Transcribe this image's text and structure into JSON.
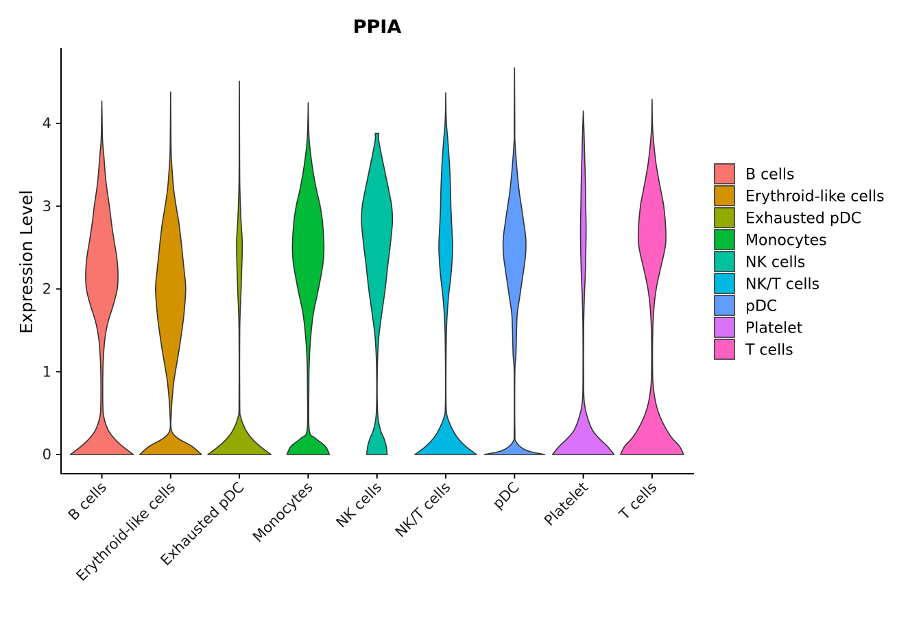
{
  "chart_data": {
    "type": "violin",
    "title": "PPIA",
    "xlabel": "",
    "ylabel": "Expression Level",
    "ylim": [
      -0.2,
      4.9
    ],
    "yticks": [
      0,
      1,
      2,
      3,
      4
    ],
    "ytick_labels": [
      "0",
      "1",
      "2",
      "3",
      "4"
    ],
    "legend_position": "right",
    "categories": [
      "B cells",
      "Erythroid-like cells",
      "Exhausted pDC",
      "Monocytes",
      "NK cells",
      "NK/T cells",
      "pDC",
      "Platelet",
      "T cells"
    ],
    "colors": [
      "#F8766D",
      "#D39200",
      "#93AA00",
      "#00BA38",
      "#00C19F",
      "#00B9E3",
      "#619CFF",
      "#DB72FB",
      "#FF61C3"
    ],
    "series": [
      {
        "name": "B cells",
        "min": 0,
        "max": 4.27,
        "profile": [
          [
            0,
            0.92
          ],
          [
            0.1,
            0.6
          ],
          [
            0.2,
            0.35
          ],
          [
            0.3,
            0.18
          ],
          [
            0.45,
            0.06
          ],
          [
            0.6,
            0.03
          ],
          [
            1.0,
            0.03
          ],
          [
            1.2,
            0.05
          ],
          [
            1.4,
            0.09
          ],
          [
            1.6,
            0.18
          ],
          [
            1.8,
            0.33
          ],
          [
            2.0,
            0.45
          ],
          [
            2.2,
            0.47
          ],
          [
            2.4,
            0.43
          ],
          [
            2.6,
            0.35
          ],
          [
            2.8,
            0.28
          ],
          [
            3.0,
            0.22
          ],
          [
            3.3,
            0.12
          ],
          [
            3.6,
            0.06
          ],
          [
            3.8,
            0.02
          ],
          [
            4.0,
            0.01
          ],
          [
            4.27,
            0.0
          ]
        ]
      },
      {
        "name": "Erythroid-like cells",
        "min": 0,
        "max": 4.38,
        "profile": [
          [
            0,
            0.9
          ],
          [
            0.1,
            0.62
          ],
          [
            0.2,
            0.2
          ],
          [
            0.3,
            0.02
          ],
          [
            0.5,
            0.02
          ],
          [
            0.7,
            0.05
          ],
          [
            0.9,
            0.1
          ],
          [
            1.1,
            0.18
          ],
          [
            1.3,
            0.26
          ],
          [
            1.5,
            0.33
          ],
          [
            1.7,
            0.39
          ],
          [
            2.0,
            0.44
          ],
          [
            2.2,
            0.4
          ],
          [
            2.4,
            0.35
          ],
          [
            2.6,
            0.3
          ],
          [
            2.8,
            0.24
          ],
          [
            3.0,
            0.16
          ],
          [
            3.2,
            0.09
          ],
          [
            3.4,
            0.05
          ],
          [
            3.6,
            0.02
          ],
          [
            3.8,
            0.01
          ],
          [
            4.1,
            0.005
          ],
          [
            4.38,
            0.0
          ]
        ]
      },
      {
        "name": "Exhausted pDC",
        "min": 0,
        "max": 4.51,
        "profile": [
          [
            0,
            0.92
          ],
          [
            0.1,
            0.6
          ],
          [
            0.2,
            0.35
          ],
          [
            0.3,
            0.18
          ],
          [
            0.45,
            0.04
          ],
          [
            0.6,
            0.01
          ],
          [
            1.5,
            0.01
          ],
          [
            2.0,
            0.05
          ],
          [
            2.4,
            0.08
          ],
          [
            2.6,
            0.08
          ],
          [
            2.8,
            0.05
          ],
          [
            3.0,
            0.03
          ],
          [
            3.3,
            0.01
          ],
          [
            3.8,
            0.005
          ],
          [
            4.2,
            0.003
          ],
          [
            4.51,
            0.0
          ]
        ]
      },
      {
        "name": "Monocytes",
        "min": 0,
        "max": 4.25,
        "profile": [
          [
            0,
            0.62
          ],
          [
            0.1,
            0.5
          ],
          [
            0.2,
            0.2
          ],
          [
            0.3,
            0.03
          ],
          [
            0.8,
            0.02
          ],
          [
            1.1,
            0.03
          ],
          [
            1.4,
            0.07
          ],
          [
            1.7,
            0.15
          ],
          [
            2.0,
            0.3
          ],
          [
            2.3,
            0.43
          ],
          [
            2.5,
            0.46
          ],
          [
            2.8,
            0.42
          ],
          [
            3.0,
            0.35
          ],
          [
            3.2,
            0.24
          ],
          [
            3.4,
            0.15
          ],
          [
            3.6,
            0.08
          ],
          [
            3.8,
            0.03
          ],
          [
            4.0,
            0.01
          ],
          [
            4.25,
            0.0
          ]
        ]
      },
      {
        "name": "NK cells",
        "min": 0,
        "max": 3.88,
        "profile": [
          [
            0,
            0.3
          ],
          [
            0.1,
            0.27
          ],
          [
            0.2,
            0.2
          ],
          [
            0.3,
            0.1
          ],
          [
            0.5,
            0.02
          ],
          [
            1.0,
            0.01
          ],
          [
            1.4,
            0.05
          ],
          [
            1.7,
            0.14
          ],
          [
            2.0,
            0.24
          ],
          [
            2.3,
            0.32
          ],
          [
            2.5,
            0.38
          ],
          [
            2.8,
            0.45
          ],
          [
            3.0,
            0.43
          ],
          [
            3.2,
            0.34
          ],
          [
            3.4,
            0.24
          ],
          [
            3.6,
            0.14
          ],
          [
            3.8,
            0.05
          ],
          [
            3.88,
            0.05
          ]
        ]
      },
      {
        "name": "NK/T cells",
        "min": 0,
        "max": 4.37,
        "profile": [
          [
            0,
            0.9
          ],
          [
            0.1,
            0.58
          ],
          [
            0.2,
            0.35
          ],
          [
            0.3,
            0.2
          ],
          [
            0.45,
            0.05
          ],
          [
            0.6,
            0.01
          ],
          [
            1.2,
            0.01
          ],
          [
            1.6,
            0.03
          ],
          [
            1.9,
            0.08
          ],
          [
            2.2,
            0.16
          ],
          [
            2.5,
            0.2
          ],
          [
            2.8,
            0.17
          ],
          [
            3.0,
            0.15
          ],
          [
            3.2,
            0.14
          ],
          [
            3.5,
            0.11
          ],
          [
            3.8,
            0.06
          ],
          [
            4.0,
            0.02
          ],
          [
            4.2,
            0.005
          ],
          [
            4.37,
            0.0
          ]
        ]
      },
      {
        "name": "pDC",
        "min": 0,
        "max": 4.67,
        "profile": [
          [
            0,
            0.88
          ],
          [
            0.05,
            0.35
          ],
          [
            0.15,
            0.05
          ],
          [
            0.3,
            0.01
          ],
          [
            1.0,
            0.01
          ],
          [
            1.2,
            0.04
          ],
          [
            1.5,
            0.06
          ],
          [
            1.7,
            0.08
          ],
          [
            1.9,
            0.15
          ],
          [
            2.1,
            0.22
          ],
          [
            2.4,
            0.32
          ],
          [
            2.6,
            0.33
          ],
          [
            2.8,
            0.27
          ],
          [
            3.0,
            0.2
          ],
          [
            3.2,
            0.13
          ],
          [
            3.5,
            0.06
          ],
          [
            3.8,
            0.01
          ],
          [
            4.0,
            0.008
          ],
          [
            4.67,
            0.0
          ]
        ]
      },
      {
        "name": "Platelet",
        "min": 0,
        "max": 4.15,
        "profile": [
          [
            0,
            0.9
          ],
          [
            0.1,
            0.7
          ],
          [
            0.2,
            0.45
          ],
          [
            0.3,
            0.26
          ],
          [
            0.45,
            0.12
          ],
          [
            0.6,
            0.04
          ],
          [
            0.8,
            0.01
          ],
          [
            1.5,
            0.01
          ],
          [
            1.9,
            0.03
          ],
          [
            2.2,
            0.06
          ],
          [
            2.6,
            0.08
          ],
          [
            2.8,
            0.08
          ],
          [
            3.0,
            0.07
          ],
          [
            3.3,
            0.06
          ],
          [
            3.6,
            0.04
          ],
          [
            3.9,
            0.02
          ],
          [
            4.15,
            0.0
          ]
        ]
      },
      {
        "name": "T cells",
        "min": 0,
        "max": 4.29,
        "profile": [
          [
            0,
            0.92
          ],
          [
            0.1,
            0.8
          ],
          [
            0.2,
            0.58
          ],
          [
            0.3,
            0.42
          ],
          [
            0.45,
            0.24
          ],
          [
            0.6,
            0.12
          ],
          [
            0.8,
            0.04
          ],
          [
            1.0,
            0.015
          ],
          [
            1.5,
            0.02
          ],
          [
            1.8,
            0.06
          ],
          [
            2.0,
            0.12
          ],
          [
            2.2,
            0.22
          ],
          [
            2.5,
            0.38
          ],
          [
            2.7,
            0.4
          ],
          [
            3.0,
            0.34
          ],
          [
            3.2,
            0.25
          ],
          [
            3.5,
            0.12
          ],
          [
            3.8,
            0.04
          ],
          [
            4.0,
            0.01
          ],
          [
            4.29,
            0.0
          ]
        ]
      }
    ]
  }
}
